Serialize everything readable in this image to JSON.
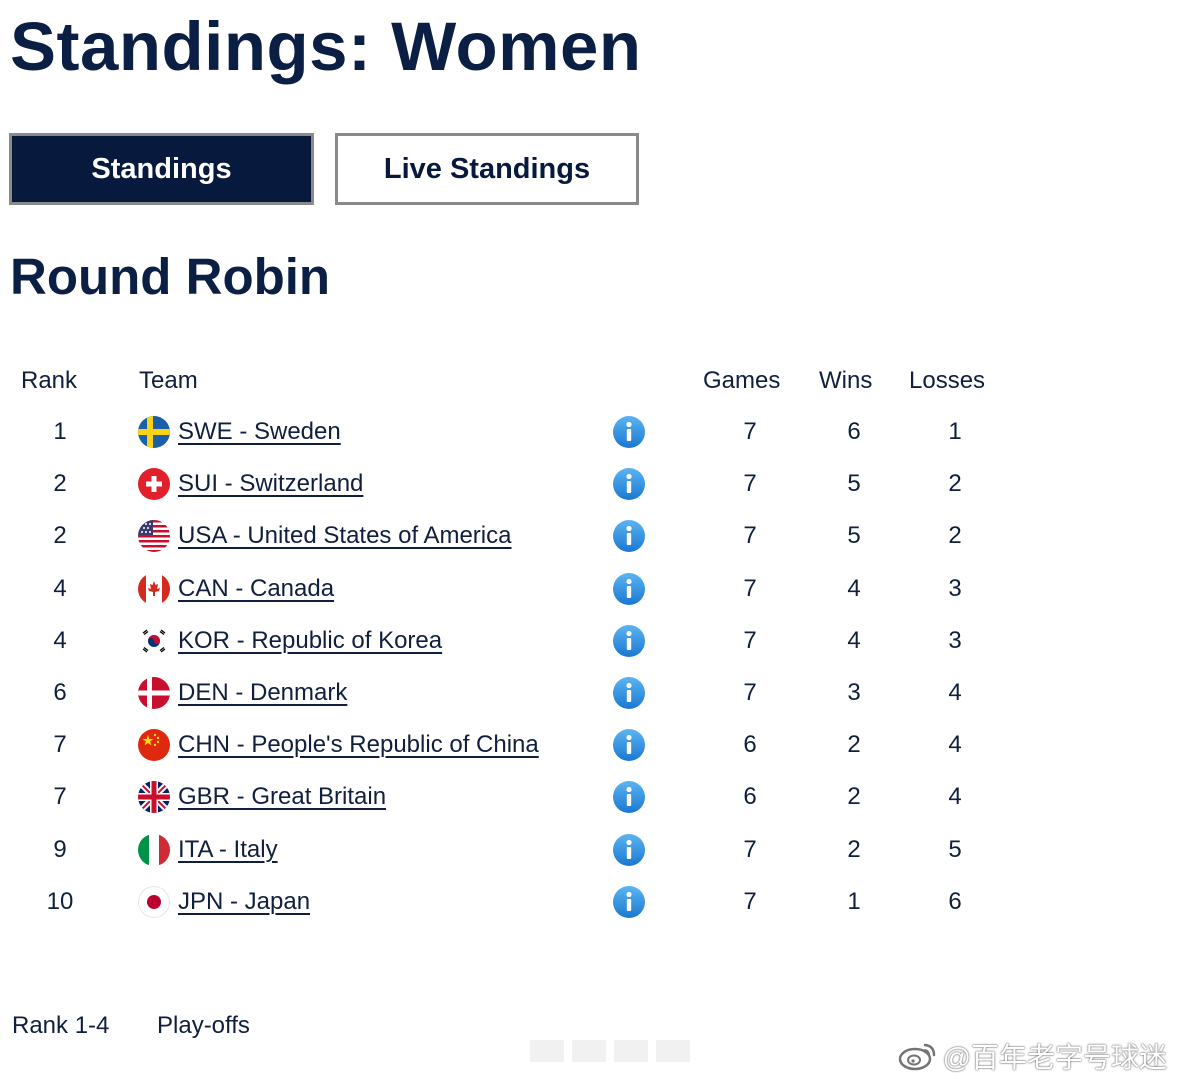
{
  "header": {
    "title": "Standings: Women"
  },
  "tabs": {
    "standings": "Standings",
    "live": "Live Standings"
  },
  "section": {
    "title": "Round Robin"
  },
  "table": {
    "columns": {
      "rank": "Rank",
      "team": "Team",
      "games": "Games",
      "wins": "Wins",
      "losses": "Losses"
    },
    "rows": [
      {
        "rank": "1",
        "code": "SWE",
        "team": "SWE - Sweden",
        "games": "7",
        "wins": "6",
        "losses": "1",
        "flag": "sweden-flag-icon"
      },
      {
        "rank": "2",
        "code": "SUI",
        "team": "SUI - Switzerland",
        "games": "7",
        "wins": "5",
        "losses": "2",
        "flag": "switzerland-flag-icon"
      },
      {
        "rank": "2",
        "code": "USA",
        "team": "USA - United States of America",
        "games": "7",
        "wins": "5",
        "losses": "2",
        "flag": "usa-flag-icon"
      },
      {
        "rank": "4",
        "code": "CAN",
        "team": "CAN - Canada",
        "games": "7",
        "wins": "4",
        "losses": "3",
        "flag": "canada-flag-icon"
      },
      {
        "rank": "4",
        "code": "KOR",
        "team": "KOR - Republic of Korea",
        "games": "7",
        "wins": "4",
        "losses": "3",
        "flag": "korea-flag-icon"
      },
      {
        "rank": "6",
        "code": "DEN",
        "team": "DEN - Denmark",
        "games": "7",
        "wins": "3",
        "losses": "4",
        "flag": "denmark-flag-icon"
      },
      {
        "rank": "7",
        "code": "CHN",
        "team": "CHN - People's Republic of China",
        "games": "6",
        "wins": "2",
        "losses": "4",
        "flag": "china-flag-icon"
      },
      {
        "rank": "7",
        "code": "GBR",
        "team": "GBR - Great Britain",
        "games": "6",
        "wins": "2",
        "losses": "4",
        "flag": "great-britain-flag-icon"
      },
      {
        "rank": "9",
        "code": "ITA",
        "team": "ITA - Italy",
        "games": "7",
        "wins": "2",
        "losses": "5",
        "flag": "italy-flag-icon"
      },
      {
        "rank": "10",
        "code": "JPN",
        "team": "JPN - Japan",
        "games": "7",
        "wins": "1",
        "losses": "6",
        "flag": "japan-flag-icon"
      }
    ]
  },
  "legend": {
    "rank_range": "Rank 1-4",
    "label": "Play-offs"
  },
  "watermark": {
    "text": "@百年老字号球迷",
    "icon": "weibo-logo-icon"
  },
  "colors": {
    "navy": "#071a3d",
    "info_blue": "#2a8fe0"
  }
}
